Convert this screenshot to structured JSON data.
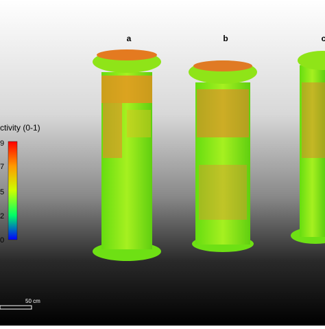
{
  "panels": [
    {
      "label": "a"
    },
    {
      "label": "b"
    },
    {
      "label": "c"
    }
  ],
  "colorbar": {
    "title": "ctivity (0-1)",
    "tick_labels": [
      "9",
      "7",
      "5",
      "2",
      "0"
    ]
  },
  "scale_bar": {
    "label": "50 cm"
  }
}
